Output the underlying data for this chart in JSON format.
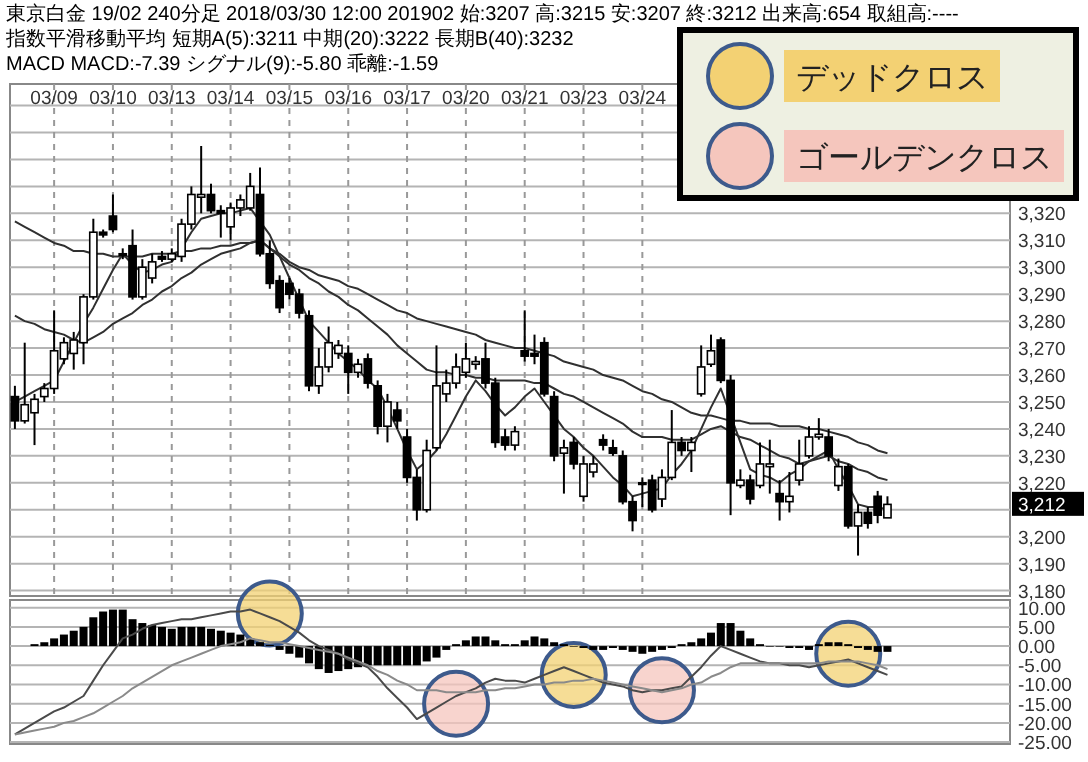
{
  "chart_data": [
    {
      "type": "candlestick",
      "title": "東京白金 19/02 240分足 2018/03/30 12:00 201902 始:3207 高:3215 安:3207 終:3212 出来高:654 取組高:----",
      "subtitle": "指数平滑移動平均 短期A(5):3211 中期(20):3222 長期B(40):3232",
      "annotations": [
        "MACD MACD:-7.39 シグナル(9):-5.80 乖離:-1.59",
        "3,212"
      ],
      "categories": [
        null,
        null,
        null,
        null,
        "03/09",
        null,
        null,
        null,
        null,
        null,
        "03/10",
        null,
        null,
        null,
        null,
        null,
        "03/13",
        null,
        null,
        null,
        null,
        null,
        "03/14",
        null,
        null,
        null,
        null,
        null,
        "03/15",
        null,
        null,
        null,
        null,
        null,
        "03/16",
        null,
        null,
        null,
        null,
        null,
        "03/17",
        null,
        null,
        null,
        null,
        null,
        "03/20",
        null,
        null,
        null,
        null,
        null,
        "03/21",
        null,
        null,
        null,
        null,
        null,
        "03/23",
        null,
        null,
        null,
        null,
        null,
        "03/24",
        null,
        null,
        null,
        null,
        null,
        null,
        null,
        null,
        null,
        null,
        null,
        null,
        null,
        null,
        null,
        null,
        null,
        null,
        null,
        null,
        null,
        null,
        null,
        null,
        null
      ],
      "ohlc": [
        [
          3252,
          3256,
          3240,
          3243
        ],
        [
          3243,
          3272,
          3242,
          3249
        ],
        [
          3246,
          3253,
          3234,
          3251
        ],
        [
          3252,
          3257,
          3250,
          3255
        ],
        [
          3255,
          3284,
          3253,
          3269
        ],
        [
          3266,
          3274,
          3264,
          3272
        ],
        [
          3268,
          3276,
          3262,
          3273
        ],
        [
          3272,
          3290,
          3264,
          3289
        ],
        [
          3289,
          3318,
          3288,
          3313
        ],
        [
          3313,
          3314,
          3311,
          3312
        ],
        [
          3319,
          3327,
          3313,
          3314
        ],
        [
          3305,
          3307,
          3303,
          3305
        ],
        [
          3308,
          3314,
          3288,
          3289
        ],
        [
          3289,
          3303,
          3288,
          3300
        ],
        [
          3296,
          3305,
          3294,
          3302
        ],
        [
          3304,
          3306,
          3302,
          3303
        ],
        [
          3303,
          3307,
          3302,
          3305
        ],
        [
          3304,
          3318,
          3302,
          3316
        ],
        [
          3316,
          3330,
          3314,
          3327
        ],
        [
          3326,
          3345,
          3320,
          3327
        ],
        [
          3327,
          3331,
          3320,
          3321
        ],
        [
          3321,
          3323,
          3311,
          3320
        ],
        [
          3315,
          3324,
          3310,
          3322
        ],
        [
          3322,
          3327,
          3319,
          3325
        ],
        [
          3322,
          3335,
          3321,
          3330
        ],
        [
          3327,
          3337,
          3304,
          3305
        ],
        [
          3305,
          3310,
          3292,
          3294
        ],
        [
          3295,
          3297,
          3283,
          3285
        ],
        [
          3294,
          3296,
          3288,
          3290
        ],
        [
          3290,
          3292,
          3281,
          3283
        ],
        [
          3282,
          3284,
          3254,
          3256
        ],
        [
          3256,
          3270,
          3253,
          3263
        ],
        [
          3263,
          3278,
          3261,
          3272
        ],
        [
          3268,
          3273,
          3266,
          3271
        ],
        [
          3268,
          3271,
          3253,
          3261
        ],
        [
          3261,
          3266,
          3259,
          3264
        ],
        [
          3266,
          3268,
          3255,
          3257
        ],
        [
          3256,
          3258,
          3238,
          3241
        ],
        [
          3241,
          3253,
          3235,
          3250
        ],
        [
          3247,
          3250,
          3240,
          3243
        ],
        [
          3237,
          3240,
          3220,
          3222
        ],
        [
          3222,
          3225,
          3206,
          3210
        ],
        [
          3210,
          3236,
          3209,
          3232
        ],
        [
          3233,
          3271,
          3232,
          3256
        ],
        [
          3253,
          3262,
          3250,
          3257
        ],
        [
          3257,
          3268,
          3255,
          3263
        ],
        [
          3261,
          3272,
          3259,
          3266
        ],
        [
          3264,
          3267,
          3262,
          3265
        ],
        [
          3266,
          3272,
          3255,
          3257
        ],
        [
          3257,
          3259,
          3233,
          3235
        ],
        [
          3237,
          3240,
          3232,
          3234
        ],
        [
          3234,
          3241,
          3232,
          3239
        ],
        [
          3269,
          3284,
          3265,
          3267
        ],
        [
          3268,
          3275,
          3264,
          3267
        ],
        [
          3272,
          3274,
          3252,
          3253
        ],
        [
          3252,
          3254,
          3228,
          3230
        ],
        [
          3231,
          3236,
          3216,
          3233
        ],
        [
          3235,
          3237,
          3225,
          3227
        ],
        [
          3215,
          3230,
          3213,
          3227
        ],
        [
          3224,
          3230,
          3222,
          3227
        ],
        [
          3236,
          3238,
          3232,
          3234
        ],
        [
          3233,
          3236,
          3230,
          3231
        ],
        [
          3230,
          3232,
          3212,
          3213
        ],
        [
          3213,
          3215,
          3202,
          3206
        ],
        [
          3220,
          3222,
          3211,
          3220
        ],
        [
          3221,
          3223,
          3209,
          3210
        ],
        [
          3214,
          3225,
          3211,
          3222
        ],
        [
          3222,
          3247,
          3221,
          3235
        ],
        [
          3235,
          3237,
          3230,
          3232
        ],
        [
          3232,
          3237,
          3224,
          3235
        ],
        [
          3253,
          3271,
          3252,
          3263
        ],
        [
          3264,
          3275,
          3263,
          3269
        ],
        [
          3273,
          3274,
          3257,
          3258
        ],
        [
          3258,
          3260,
          3208,
          3220
        ],
        [
          3219,
          3225,
          3218,
          3221
        ],
        [
          3221,
          3223,
          3212,
          3214
        ],
        [
          3219,
          3235,
          3218,
          3227
        ],
        [
          3226,
          3236,
          3216,
          3227
        ],
        [
          3216,
          3221,
          3206,
          3213
        ],
        [
          3213,
          3224,
          3209,
          3215
        ],
        [
          3221,
          3236,
          3219,
          3227
        ],
        [
          3230,
          3241,
          3229,
          3237
        ],
        [
          3237,
          3244,
          3236,
          3238
        ],
        [
          3237,
          3240,
          3228,
          3230
        ],
        [
          3219,
          3229,
          3217,
          3226
        ],
        [
          3226,
          3227,
          3203,
          3204
        ],
        [
          3204,
          3212,
          3193,
          3209
        ],
        [
          3209,
          3211,
          3203,
          3205
        ],
        [
          3215,
          3217,
          3205,
          3208
        ],
        [
          3207,
          3215,
          3207,
          3212
        ]
      ],
      "series": [
        {
          "type": "line",
          "color": "#303030",
          "values": [
            3317,
            3315,
            3313,
            3311,
            3309,
            3308,
            3306,
            3306,
            3305,
            3305,
            3304,
            3304,
            3304,
            3304,
            3305,
            3305,
            3305,
            3306,
            3306,
            3307,
            3307,
            3308,
            3308,
            3309,
            3309,
            3310,
            3307,
            3305,
            3302,
            3300,
            3299,
            3297,
            3296,
            3295,
            3293,
            3292,
            3290,
            3288,
            3286,
            3284,
            3283,
            3281,
            3280,
            3279,
            3278,
            3277,
            3276,
            3275,
            3273,
            3272,
            3271,
            3270,
            3270,
            3269,
            3268,
            3267,
            3265,
            3264,
            3263,
            3262,
            3260,
            3259,
            3258,
            3256,
            3254,
            3253,
            3251,
            3250,
            3248,
            3246,
            3245,
            3245,
            3244,
            3243,
            3243,
            3242,
            3242,
            3242,
            3241,
            3241,
            3241,
            3240,
            3240,
            3239,
            3238,
            3237,
            3235,
            3234,
            3232,
            3231
          ]
        },
        {
          "type": "line",
          "color": "#303030",
          "values": [
            3282,
            3280,
            3279,
            3277,
            3276,
            3275,
            3273,
            3272,
            3274,
            3276,
            3279,
            3281,
            3283,
            3286,
            3288,
            3291,
            3293,
            3296,
            3298,
            3301,
            3303,
            3305,
            3306,
            3307,
            3309,
            3310,
            3307,
            3304,
            3301,
            3299,
            3296,
            3294,
            3291,
            3289,
            3286,
            3284,
            3281,
            3278,
            3275,
            3271,
            3268,
            3265,
            3262,
            3261,
            3261,
            3260,
            3260,
            3259,
            3259,
            3258,
            3258,
            3258,
            3258,
            3257,
            3257,
            3255,
            3253,
            3252,
            3250,
            3248,
            3246,
            3244,
            3242,
            3239,
            3237,
            3237,
            3237,
            3236,
            3236,
            3236,
            3238,
            3240,
            3241,
            3239,
            3237,
            3236,
            3234,
            3232,
            3230,
            3229,
            3227,
            3228,
            3229,
            3230,
            3228,
            3227,
            3225,
            3224,
            3222,
            3221
          ]
        },
        {
          "type": "line",
          "color": "#303030",
          "values": [
            3250,
            3252,
            3254,
            3256,
            3258,
            3265,
            3272,
            3279,
            3285,
            3292,
            3299,
            3305,
            3301,
            3298,
            3299,
            3301,
            3302,
            3307,
            3313,
            3318,
            3319,
            3320,
            3320,
            3321,
            3322,
            3317,
            3312,
            3304,
            3296,
            3288,
            3280,
            3276,
            3272,
            3268,
            3265,
            3262,
            3258,
            3255,
            3248,
            3240,
            3232,
            3225,
            3228,
            3232,
            3238,
            3245,
            3252,
            3258,
            3254,
            3249,
            3245,
            3248,
            3252,
            3255,
            3250,
            3245,
            3240,
            3237,
            3233,
            3230,
            3226,
            3222,
            3219,
            3215,
            3216,
            3217,
            3218,
            3223,
            3227,
            3232,
            3240,
            3248,
            3255,
            3245,
            3235,
            3225,
            3223,
            3222,
            3220,
            3223,
            3225,
            3228,
            3230,
            3232,
            3225,
            3219,
            3212,
            3211,
            3211,
            3210
          ]
        }
      ],
      "ylim": [
        3178,
        3368
      ],
      "yticks": [
        {
          "value": 3180,
          "label": "3,180"
        },
        {
          "value": 3190,
          "label": "3,190"
        },
        {
          "value": 3200,
          "label": "3,200"
        },
        {
          "value": 3210,
          "label": null
        },
        {
          "value": 3220,
          "label": "3,220"
        },
        {
          "value": 3230,
          "label": "3,230"
        },
        {
          "value": 3240,
          "label": "3,240"
        },
        {
          "value": 3250,
          "label": "3,250"
        },
        {
          "value": 3260,
          "label": "3,260"
        },
        {
          "value": 3270,
          "label": "3,270"
        },
        {
          "value": 3280,
          "label": "3,280"
        },
        {
          "value": 3290,
          "label": "3,290"
        },
        {
          "value": 3300,
          "label": "3,300"
        },
        {
          "value": 3310,
          "label": "3,310"
        },
        {
          "value": 3320,
          "label": "3,320"
        },
        {
          "value": 3330,
          "label": null
        },
        {
          "value": 3340,
          "label": null
        },
        {
          "value": 3350,
          "label": null
        },
        {
          "value": 3360,
          "label": null
        }
      ],
      "grid": true
    },
    {
      "type": "bar",
      "categories": [
        null,
        null,
        null,
        null,
        null,
        null,
        null,
        null,
        null,
        null,
        null,
        null,
        null,
        null,
        null,
        null,
        null,
        null,
        null,
        null,
        null,
        null,
        null,
        null,
        null,
        null,
        null,
        null,
        null,
        null,
        null,
        null,
        null,
        null,
        null,
        null,
        null,
        null,
        null,
        null,
        null,
        null,
        null,
        null,
        null,
        null,
        null,
        null,
        null,
        null,
        null,
        null,
        null,
        null,
        null,
        null,
        null,
        null,
        null,
        null,
        null,
        null,
        null,
        null,
        null,
        null,
        null,
        null,
        null,
        null,
        null,
        null,
        null,
        null,
        null,
        null,
        null,
        null,
        null,
        null,
        null,
        null,
        null,
        null,
        null,
        null,
        null,
        null,
        null,
        null
      ],
      "series": [
        {
          "type": "bar",
          "color": "#000000",
          "values": [
            null,
            null,
            0.5,
            1,
            2,
            3,
            4,
            5,
            7.5,
            9,
            9.5,
            9.5,
            7,
            6,
            5.5,
            5,
            4.5,
            5,
            5,
            5,
            4.5,
            4,
            3.5,
            3,
            2,
            1,
            0.3,
            -1,
            -2,
            -3,
            -4.5,
            -6,
            -7,
            -6.5,
            -6,
            -5.5,
            -5,
            -5,
            -5,
            -5,
            -5,
            -5,
            -4,
            -3,
            -1,
            0.5,
            1.5,
            2.5,
            2.5,
            1.5,
            0.5,
            0.5,
            1.5,
            2.5,
            2,
            1,
            0.5,
            0,
            -0.5,
            -1,
            -1,
            -0.5,
            -1,
            -1.5,
            -2,
            -1.5,
            -1,
            -0.5,
            0.5,
            1,
            2,
            3.5,
            6,
            6,
            4,
            2,
            0.5,
            0,
            0,
            -0.5,
            -0.5,
            -1,
            0.5,
            1,
            1,
            0.5,
            -0.5,
            -1,
            -1.5,
            -1.5
          ]
        },
        {
          "type": "line",
          "color": "#4a4a4a",
          "values": [
            -23,
            -21.5,
            -20,
            -18.5,
            -17,
            -16,
            -14.5,
            -13,
            -9,
            -5,
            -1.5,
            2,
            3,
            4.5,
            5.5,
            6,
            6.5,
            7,
            7,
            7.5,
            8,
            8.5,
            9,
            9,
            9.5,
            8.5,
            7.5,
            6.5,
            5,
            3.5,
            1.5,
            0,
            -1,
            -2,
            -3.5,
            -4.5,
            -5.5,
            -8,
            -11,
            -13.5,
            -16,
            -19,
            -17.5,
            -16,
            -14.5,
            -13,
            -12,
            -11,
            -9.5,
            -8.5,
            -9,
            -9,
            -9.5,
            -8.5,
            -7.5,
            -6.5,
            -5.5,
            -6.5,
            -7.5,
            -8.5,
            -9.5,
            -10,
            -10.5,
            -11.5,
            -12,
            -11.5,
            -11.5,
            -11,
            -10.5,
            -8,
            -5.5,
            -2.5,
            0,
            -1,
            -2,
            -3,
            -4,
            -4.5,
            -4.5,
            -5,
            -5,
            -5.5,
            -5,
            -4.5,
            -4,
            -3.5,
            -4.5,
            -5.5,
            -6.5,
            -7.5
          ]
        },
        {
          "type": "line",
          "color": "#8a8a8a",
          "values": [
            -23,
            -22.5,
            -22,
            -21.5,
            -21,
            -20,
            -19.5,
            -18.5,
            -17.5,
            -16,
            -14.5,
            -13,
            -11,
            -9.5,
            -8,
            -6.5,
            -5,
            -4,
            -3,
            -2,
            -1,
            0,
            0.5,
            1,
            2,
            1.5,
            1,
            1,
            0.5,
            0,
            -0.5,
            -1,
            -1.5,
            -2,
            -3,
            -4,
            -5,
            -6.5,
            -7.5,
            -9,
            -10,
            -11.5,
            -11.5,
            -11.5,
            -12,
            -12,
            -12,
            -12,
            -11.5,
            -11.5,
            -11,
            -11,
            -10.5,
            -10,
            -10,
            -9.5,
            -9.5,
            -9,
            -9,
            -8.5,
            -9,
            -9.5,
            -10,
            -10.5,
            -11,
            -11.5,
            -12,
            -11.5,
            -11,
            -10,
            -9.5,
            -8,
            -7,
            -5.5,
            -4.5,
            -4.5,
            -4.5,
            -4.5,
            -4.5,
            -4.5,
            -4.5,
            -4.5,
            -4.5,
            -4,
            -4,
            -4,
            -4,
            -4.5,
            -5,
            -6
          ]
        },
        {
          "type": "scatter",
          "name": "デッドクロス",
          "color": "#f3d173",
          "marker": "circle",
          "values": [
            null,
            null,
            null,
            null,
            null,
            null,
            null,
            null,
            null,
            null,
            null,
            null,
            null,
            null,
            null,
            null,
            null,
            null,
            null,
            null,
            null,
            null,
            null,
            null,
            null,
            null,
            8.5,
            null,
            null,
            null,
            null,
            null,
            null,
            null,
            null,
            null,
            null,
            null,
            null,
            null,
            null,
            null,
            null,
            null,
            null,
            null,
            null,
            null,
            null,
            null,
            null,
            null,
            null,
            null,
            null,
            null,
            null,
            -7.5,
            null,
            null,
            null,
            null,
            null,
            null,
            null,
            null,
            null,
            null,
            null,
            null,
            null,
            null,
            null,
            null,
            null,
            null,
            null,
            null,
            null,
            null,
            null,
            null,
            null,
            null,
            null,
            -2,
            null,
            null,
            null,
            null
          ]
        },
        {
          "type": "scatter",
          "name": "ゴールデンクロス",
          "color": "#f5c6bd",
          "marker": "circle",
          "values": [
            null,
            null,
            null,
            null,
            null,
            null,
            null,
            null,
            null,
            null,
            null,
            null,
            null,
            null,
            null,
            null,
            null,
            null,
            null,
            null,
            null,
            null,
            null,
            null,
            null,
            null,
            null,
            null,
            null,
            null,
            null,
            null,
            null,
            null,
            null,
            null,
            null,
            null,
            null,
            null,
            null,
            null,
            null,
            null,
            null,
            -15,
            null,
            null,
            null,
            null,
            null,
            null,
            null,
            null,
            null,
            null,
            null,
            null,
            null,
            null,
            null,
            null,
            null,
            null,
            null,
            null,
            -11.5,
            null,
            null,
            null,
            null,
            null,
            null,
            null,
            null,
            null,
            null,
            null,
            null,
            null,
            null,
            null,
            null,
            null,
            null,
            null,
            null,
            null,
            null,
            null
          ]
        }
      ],
      "legend": "top right",
      "ylim": [
        -25.5,
        12
      ],
      "yticks": [
        {
          "value": 10,
          "label": "10.00"
        },
        {
          "value": 5,
          "label": "5.00"
        },
        {
          "value": 0,
          "label": "0.00"
        },
        {
          "value": -5,
          "label": "-5.00"
        },
        {
          "value": -10,
          "label": "-10.00"
        },
        {
          "value": -15,
          "label": "-15.00"
        },
        {
          "value": -20,
          "label": "-20.00"
        },
        {
          "value": -25,
          "label": "-25.00"
        }
      ],
      "grid": "y",
      "tick_labels": "y"
    }
  ]
}
